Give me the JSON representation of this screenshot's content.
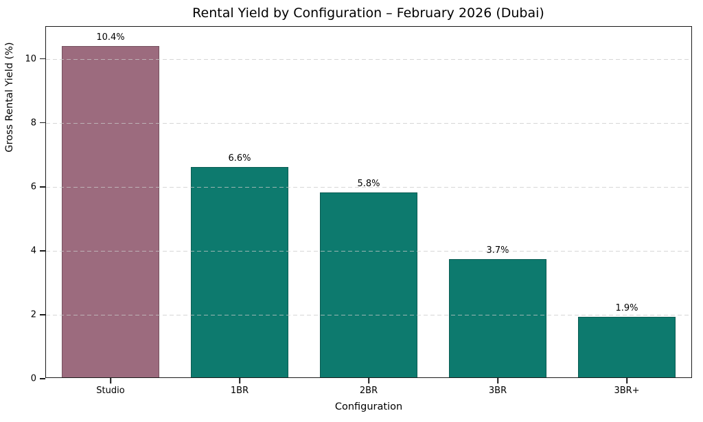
{
  "chart_data": {
    "type": "bar",
    "title": "Rental Yield by Configuration – February 2026 (Dubai)",
    "xlabel": "Configuration",
    "ylabel": "Gross Rental Yield (%)",
    "categories": [
      "Studio",
      "1BR",
      "2BR",
      "3BR",
      "3BR+"
    ],
    "values": [
      10.4,
      6.6,
      5.8,
      3.7,
      1.9
    ],
    "value_labels": [
      "10.4%",
      "6.6%",
      "5.8%",
      "3.7%",
      "1.9%"
    ],
    "bar_colors": [
      "#9c6b7e",
      "#0d7a6e",
      "#0d7a6e",
      "#0d7a6e",
      "#0d7a6e"
    ],
    "bar_edge_color": "rgba(0,0,0,0.25)",
    "ylim": [
      0,
      11
    ],
    "yticks": [
      0,
      2,
      4,
      6,
      8,
      10
    ],
    "gridline_values": [
      2,
      4,
      6,
      8,
      10
    ],
    "grid": "horizontal dashed",
    "legend": "none",
    "colors": {
      "grid": "#c9c9c9",
      "spine": "#1a1a1a",
      "text": "#000000",
      "background": "#ffffff"
    }
  }
}
